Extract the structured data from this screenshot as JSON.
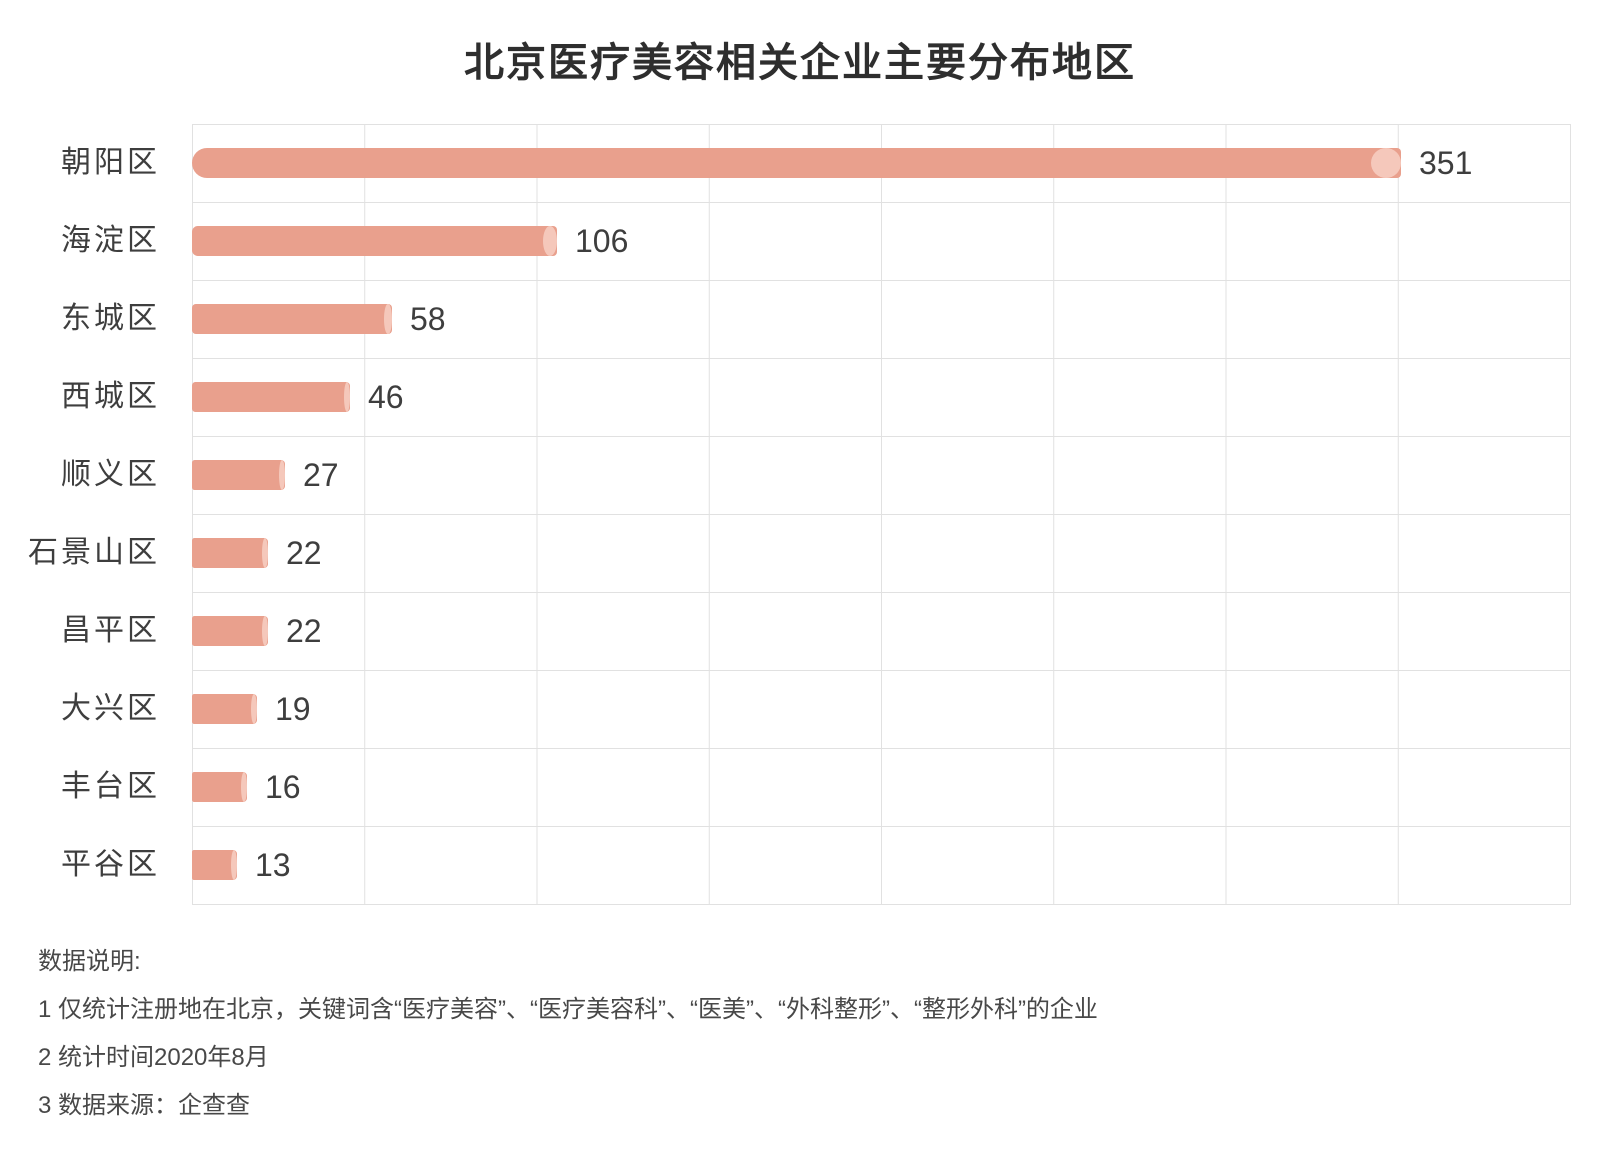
{
  "title": "北京医疗美容相关企业主要分布地区",
  "chart_data": {
    "type": "bar",
    "orientation": "horizontal",
    "title": "北京医疗美容相关企业主要分布地区",
    "categories": [
      "朝阳区",
      "海淀区",
      "东城区",
      "西城区",
      "顺义区",
      "石景山区",
      "昌平区",
      "大兴区",
      "丰台区",
      "平谷区"
    ],
    "values": [
      351,
      106,
      58,
      46,
      27,
      22,
      22,
      19,
      16,
      13
    ],
    "xlabel": "",
    "ylabel": "",
    "xlim": [
      0,
      400
    ],
    "grid": true,
    "gridlines_x_interval": 50,
    "legend": "none",
    "data_labels": [
      "351",
      "106",
      "58",
      "46",
      "27",
      "22",
      "22",
      "19",
      "16",
      "13"
    ]
  },
  "colors": {
    "bar": "#e9a08d",
    "bar_cap": "#f5c8bb",
    "grid": "#e1e1e1",
    "text": "#3e3e3e",
    "title_text": "#2e2e2e",
    "notes_text": "#484848",
    "background": "#ffffff"
  },
  "notes": {
    "heading": "数据说明:",
    "line1": "1 仅统计注册地在北京，关键词含“医疗美容”、“医疗美容科”、“医美”、“外科整形”、“整形外科”的企业",
    "line2": "2 统计时间2020年8月",
    "line3": "3 数据来源：企查查"
  }
}
